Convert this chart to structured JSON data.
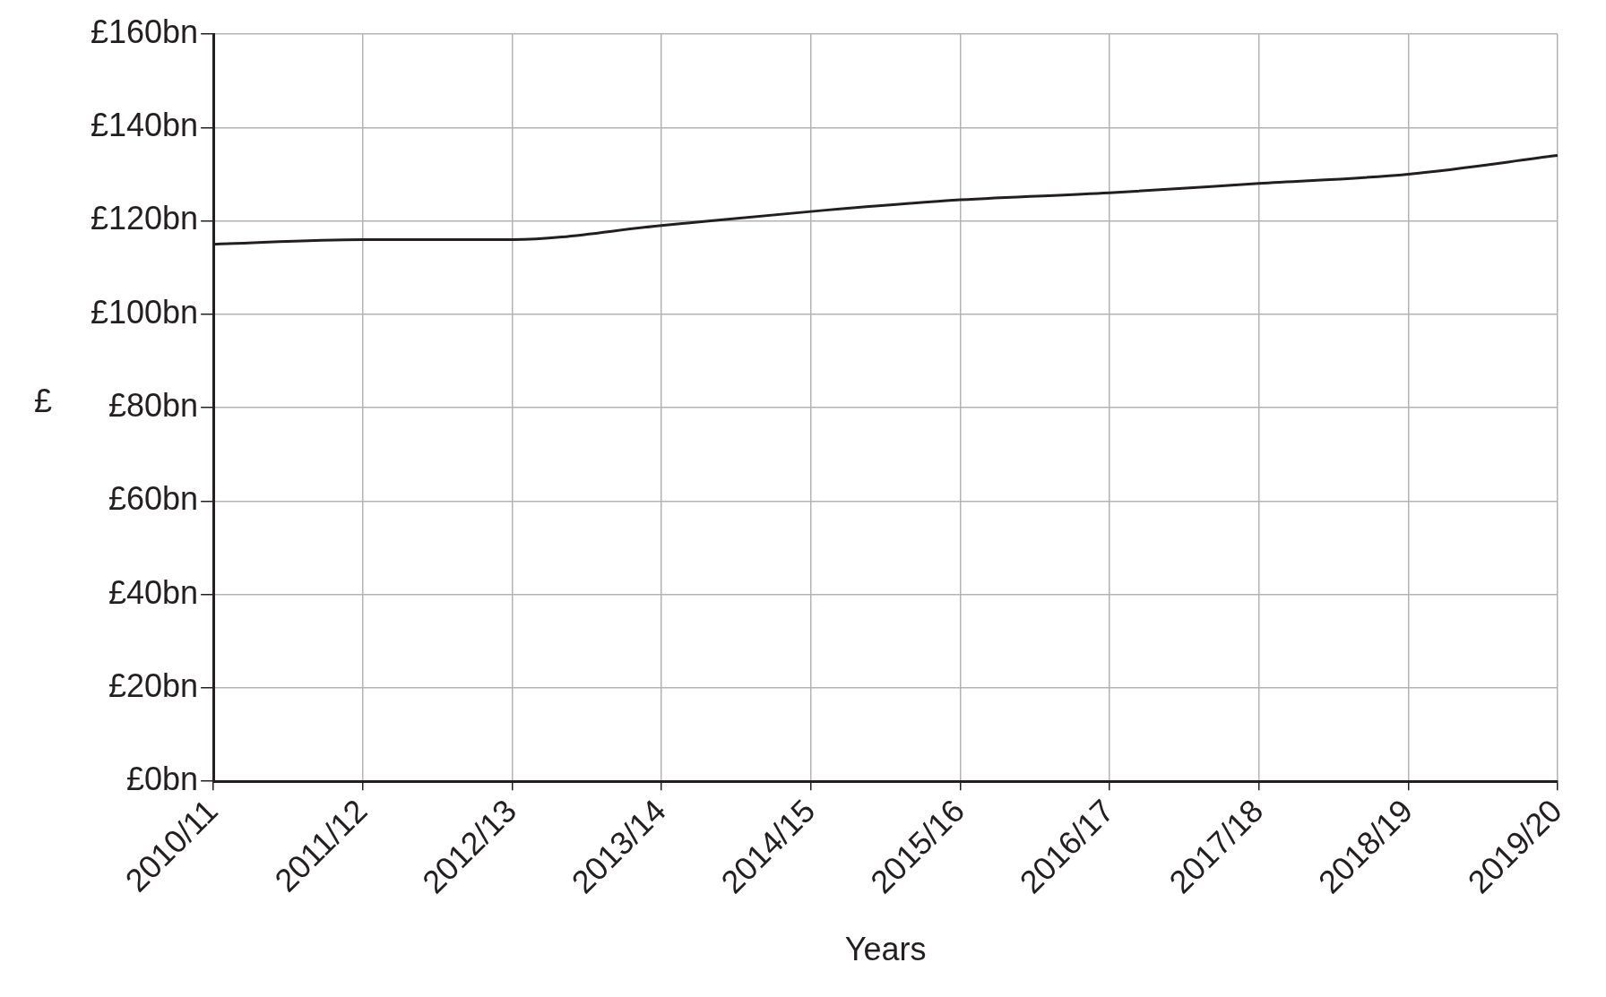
{
  "chart_data": {
    "type": "line",
    "xlabel": "Years",
    "ylabel": "£",
    "categories": [
      "2010/11",
      "2011/12",
      "2012/13",
      "2013/14",
      "2014/15",
      "2015/16",
      "2016/17",
      "2017/18",
      "2018/19",
      "2019/20"
    ],
    "series": [
      {
        "color": "#231f20",
        "values": [
          115,
          116,
          116,
          119,
          122,
          124.5,
          126,
          128,
          130,
          134
        ]
      }
    ],
    "ylim": [
      0,
      160
    ],
    "yticks": [
      {
        "value": 0,
        "label": "£0bn"
      },
      {
        "value": 20,
        "label": "£20bn"
      },
      {
        "value": 40,
        "label": "£40bn"
      },
      {
        "value": 60,
        "label": "£60bn"
      },
      {
        "value": 80,
        "label": "£80bn"
      },
      {
        "value": 100,
        "label": "£100bn"
      },
      {
        "value": 120,
        "label": "£120bn"
      },
      {
        "value": 140,
        "label": "£140bn"
      },
      {
        "value": 160,
        "label": "£160bn"
      }
    ],
    "grid": true,
    "legend": false,
    "marker": "none",
    "line_style": "solid"
  }
}
